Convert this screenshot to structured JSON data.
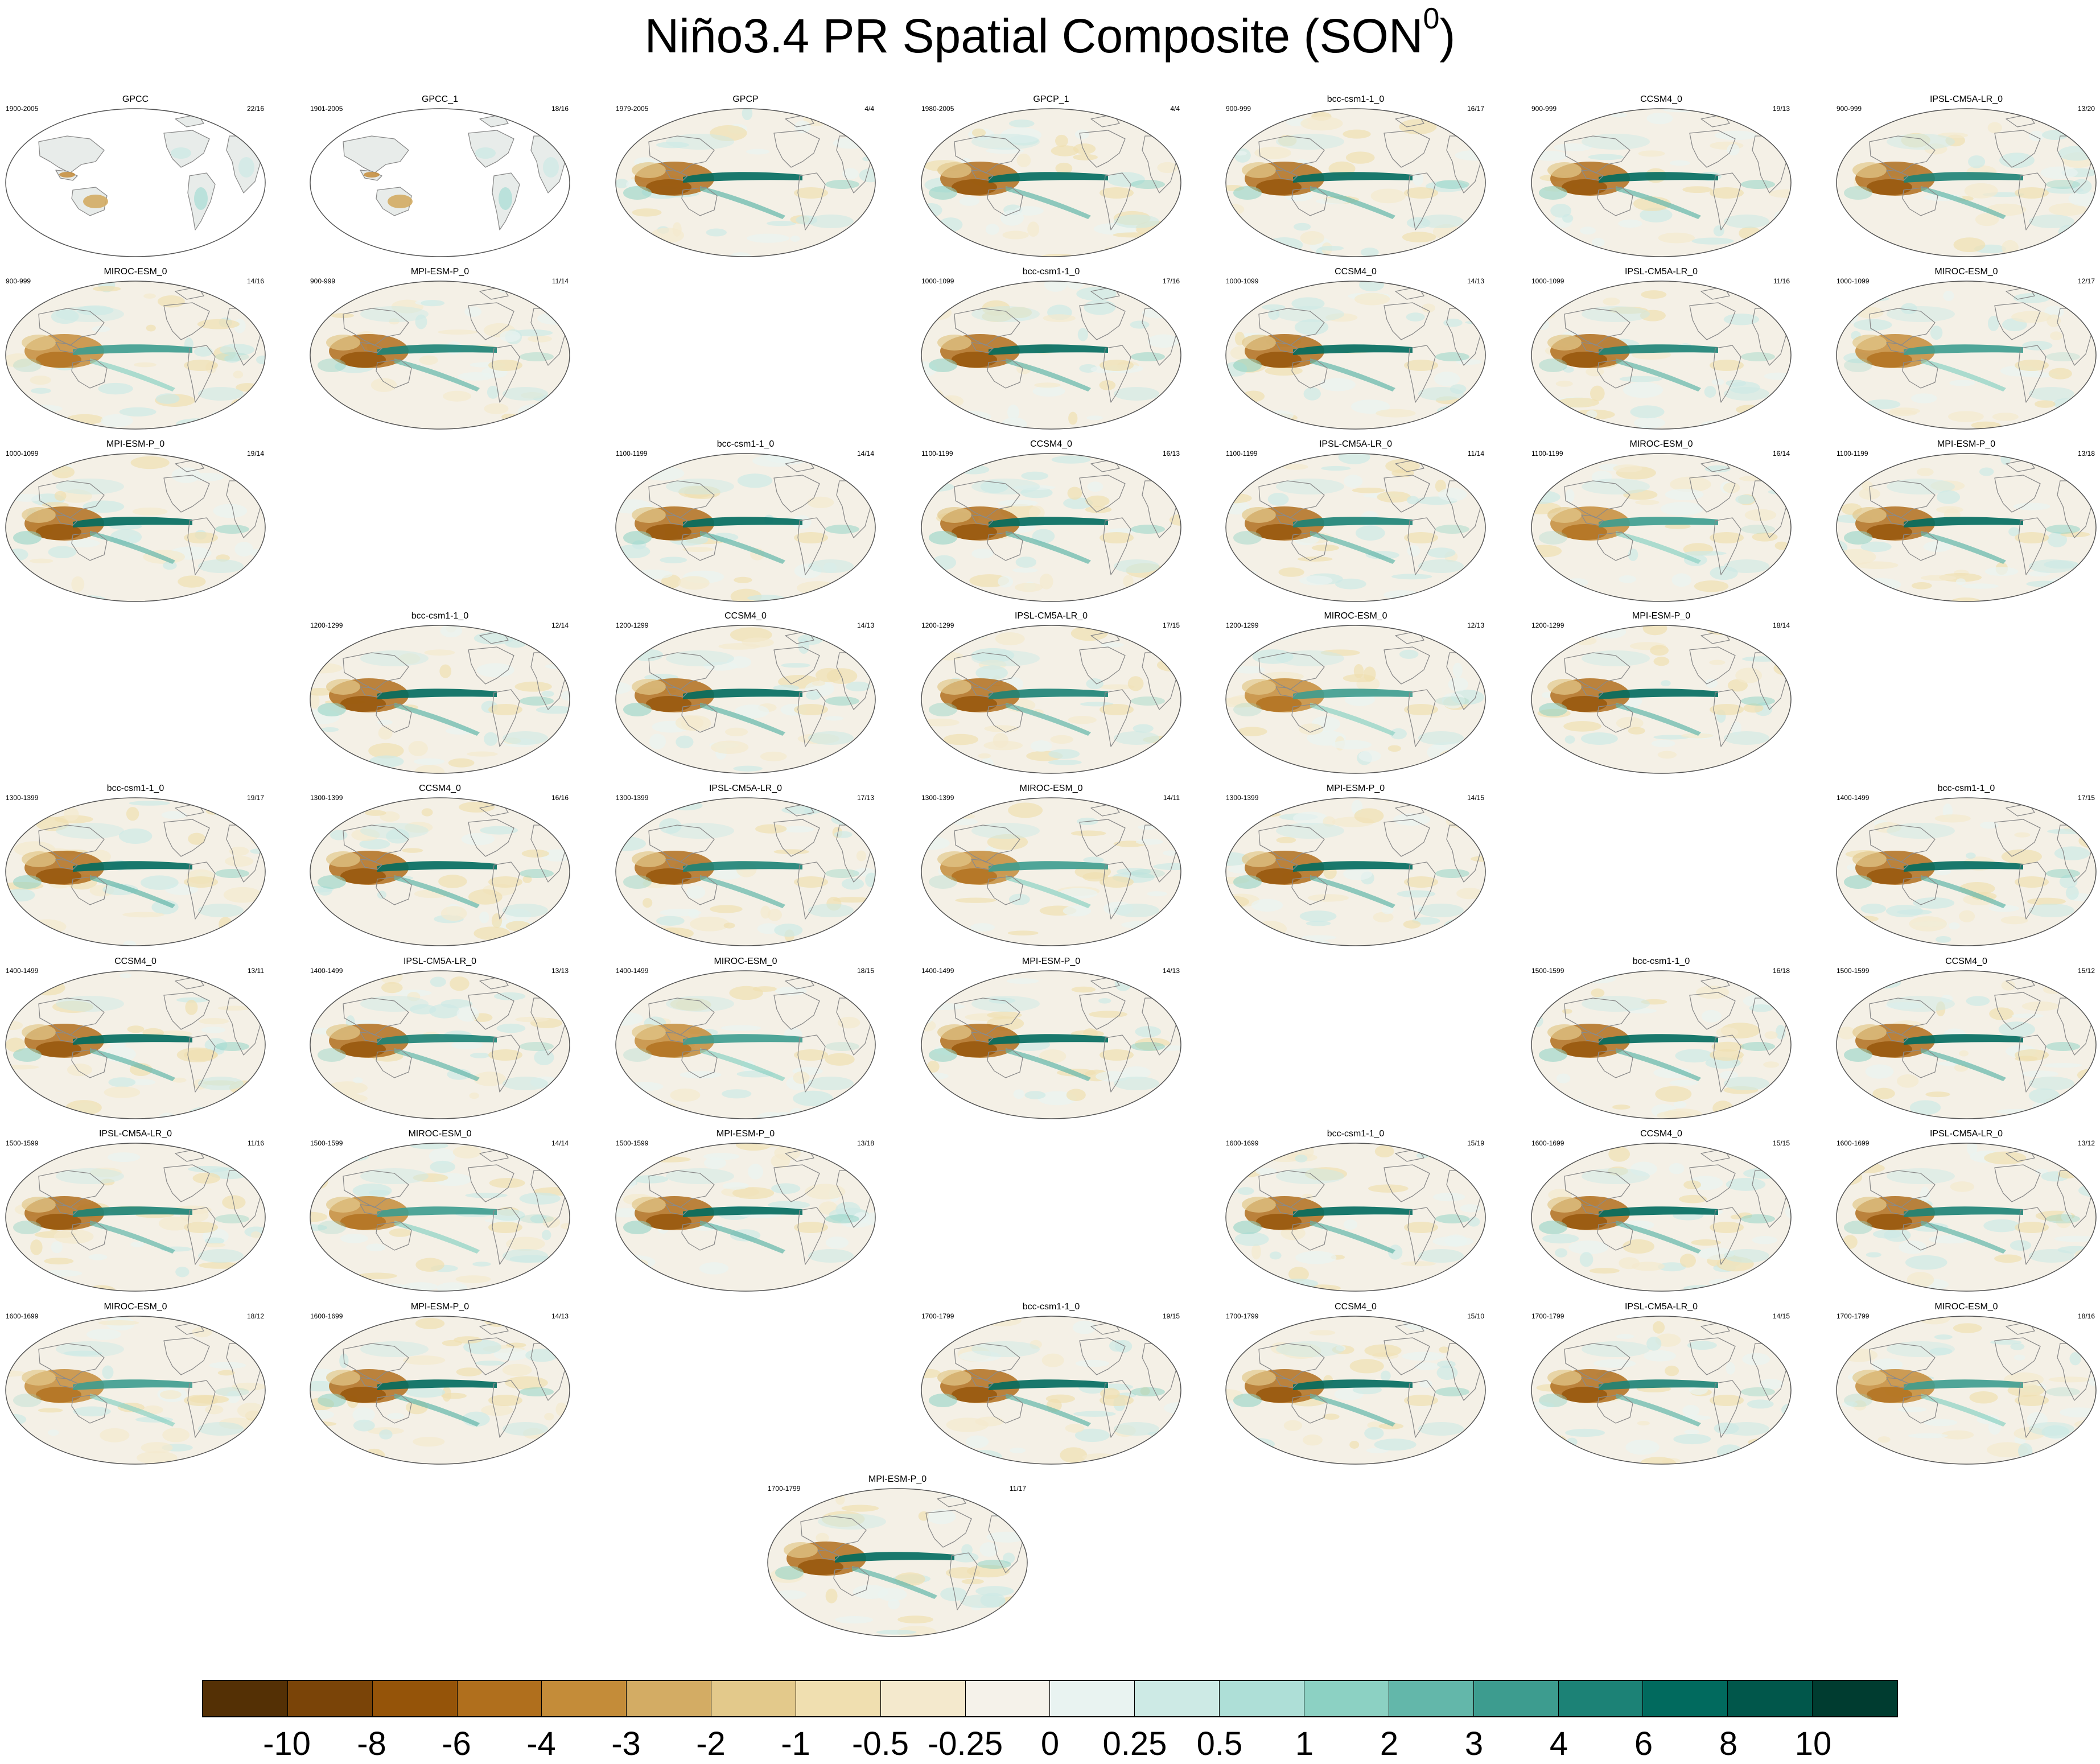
{
  "title": {
    "main": "Niño3.4 PR Spatial Composite (SON",
    "superscript": "0",
    "close": ")"
  },
  "style": {
    "map_background": "#f4f0e6",
    "coast_color": "#8a8a8a",
    "border_color": "#555555"
  },
  "panels": [
    {
      "name": "GPCC",
      "years": "1900-2005",
      "count": "22/16",
      "pattern": "land"
    },
    {
      "name": "GPCC_1",
      "years": "1901-2005",
      "count": "18/16",
      "pattern": "land"
    },
    {
      "name": "GPCP",
      "years": "1979-2005",
      "count": "4/4",
      "pattern": "strong"
    },
    {
      "name": "GPCP_1",
      "years": "1980-2005",
      "count": "4/4",
      "pattern": "strong"
    },
    {
      "name": "bcc-csm1-1_0",
      "years": "900-999",
      "count": "16/17",
      "pattern": "strong"
    },
    {
      "name": "CCSM4_0",
      "years": "900-999",
      "count": "19/13",
      "pattern": "strong"
    },
    {
      "name": "IPSL-CM5A-LR_0",
      "years": "900-999",
      "count": "13/20",
      "pattern": "medium"
    },
    {
      "name": "MIROC-ESM_0",
      "years": "900-999",
      "count": "14/16",
      "pattern": "weak"
    },
    {
      "name": "MPI-ESM-P_0",
      "years": "900-999",
      "count": "11/14",
      "pattern": "medium"
    },
    {
      "name": "bcc-csm1-1_0",
      "years": "1000-1099",
      "count": "17/16",
      "pattern": "strong"
    },
    {
      "name": "CCSM4_0",
      "years": "1000-1099",
      "count": "14/13",
      "pattern": "strong"
    },
    {
      "name": "IPSL-CM5A-LR_0",
      "years": "1000-1099",
      "count": "11/16",
      "pattern": "medium"
    },
    {
      "name": "MIROC-ESM_0",
      "years": "1000-1099",
      "count": "12/17",
      "pattern": "weak"
    },
    {
      "name": "MPI-ESM-P_0",
      "years": "1000-1099",
      "count": "19/14",
      "pattern": "strong"
    },
    {
      "name": "bcc-csm1-1_0",
      "years": "1100-1199",
      "count": "14/14",
      "pattern": "strong"
    },
    {
      "name": "CCSM4_0",
      "years": "1100-1199",
      "count": "16/13",
      "pattern": "strong"
    },
    {
      "name": "IPSL-CM5A-LR_0",
      "years": "1100-1199",
      "count": "11/14",
      "pattern": "medium"
    },
    {
      "name": "MIROC-ESM_0",
      "years": "1100-1199",
      "count": "16/14",
      "pattern": "weak"
    },
    {
      "name": "MPI-ESM-P_0",
      "years": "1100-1199",
      "count": "13/18",
      "pattern": "strong"
    },
    {
      "name": "bcc-csm1-1_0",
      "years": "1200-1299",
      "count": "12/14",
      "pattern": "strong"
    },
    {
      "name": "CCSM4_0",
      "years": "1200-1299",
      "count": "14/13",
      "pattern": "strong"
    },
    {
      "name": "IPSL-CM5A-LR_0",
      "years": "1200-1299",
      "count": "17/15",
      "pattern": "medium"
    },
    {
      "name": "MIROC-ESM_0",
      "years": "1200-1299",
      "count": "12/13",
      "pattern": "weak"
    },
    {
      "name": "MPI-ESM-P_0",
      "years": "1200-1299",
      "count": "18/14",
      "pattern": "strong"
    },
    {
      "name": "bcc-csm1-1_0",
      "years": "1300-1399",
      "count": "19/17",
      "pattern": "strong"
    },
    {
      "name": "CCSM4_0",
      "years": "1300-1399",
      "count": "16/16",
      "pattern": "strong"
    },
    {
      "name": "IPSL-CM5A-LR_0",
      "years": "1300-1399",
      "count": "17/13",
      "pattern": "medium"
    },
    {
      "name": "MIROC-ESM_0",
      "years": "1300-1399",
      "count": "14/11",
      "pattern": "weak"
    },
    {
      "name": "MPI-ESM-P_0",
      "years": "1300-1399",
      "count": "14/15",
      "pattern": "strong"
    },
    {
      "name": "bcc-csm1-1_0",
      "years": "1400-1499",
      "count": "17/15",
      "pattern": "strong"
    },
    {
      "name": "CCSM4_0",
      "years": "1400-1499",
      "count": "13/11",
      "pattern": "strong"
    },
    {
      "name": "IPSL-CM5A-LR_0",
      "years": "1400-1499",
      "count": "13/13",
      "pattern": "medium"
    },
    {
      "name": "MIROC-ESM_0",
      "years": "1400-1499",
      "count": "18/15",
      "pattern": "weak"
    },
    {
      "name": "MPI-ESM-P_0",
      "years": "1400-1499",
      "count": "14/13",
      "pattern": "strong"
    },
    {
      "name": "bcc-csm1-1_0",
      "years": "1500-1599",
      "count": "16/18",
      "pattern": "strong"
    },
    {
      "name": "CCSM4_0",
      "years": "1500-1599",
      "count": "15/12",
      "pattern": "strong"
    },
    {
      "name": "IPSL-CM5A-LR_0",
      "years": "1500-1599",
      "count": "11/16",
      "pattern": "medium"
    },
    {
      "name": "MIROC-ESM_0",
      "years": "1500-1599",
      "count": "14/14",
      "pattern": "weak"
    },
    {
      "name": "MPI-ESM-P_0",
      "years": "1500-1599",
      "count": "13/18",
      "pattern": "strong"
    },
    {
      "name": "bcc-csm1-1_0",
      "years": "1600-1699",
      "count": "15/19",
      "pattern": "strong"
    },
    {
      "name": "CCSM4_0",
      "years": "1600-1699",
      "count": "15/15",
      "pattern": "strong"
    },
    {
      "name": "IPSL-CM5A-LR_0",
      "years": "1600-1699",
      "count": "13/12",
      "pattern": "medium"
    },
    {
      "name": "MIROC-ESM_0",
      "years": "1600-1699",
      "count": "18/12",
      "pattern": "weak"
    },
    {
      "name": "MPI-ESM-P_0",
      "years": "1600-1699",
      "count": "14/13",
      "pattern": "strong"
    },
    {
      "name": "bcc-csm1-1_0",
      "years": "1700-1799",
      "count": "19/15",
      "pattern": "strong"
    },
    {
      "name": "CCSM4_0",
      "years": "1700-1799",
      "count": "15/10",
      "pattern": "strong"
    },
    {
      "name": "IPSL-CM5A-LR_0",
      "years": "1700-1799",
      "count": "14/15",
      "pattern": "medium"
    },
    {
      "name": "MIROC-ESM_0",
      "years": "1700-1799",
      "count": "18/16",
      "pattern": "weak"
    },
    {
      "name": "MPI-ESM-P_0",
      "years": "1700-1799",
      "count": "11/17",
      "pattern": "strong"
    }
  ],
  "colorbar": {
    "colors": [
      "#543005",
      "#7a4408",
      "#955409",
      "#b06f1d",
      "#c48c39",
      "#d3ac64",
      "#e3c98b",
      "#f0dfb0",
      "#f4e9cd",
      "#f5f2ea",
      "#e9f3f1",
      "#cdeae5",
      "#aedfd7",
      "#8cd1c3",
      "#63b7aa",
      "#3d9c8f",
      "#1c8276",
      "#016a5e",
      "#01574b",
      "#003c30"
    ],
    "labels": [
      "-10",
      "-8",
      "-6",
      "-4",
      "-3",
      "-2",
      "-1",
      "-0.5",
      "-0.25",
      "0",
      "0.25",
      "0.5",
      "1",
      "2",
      "3",
      "4",
      "6",
      "8",
      "10"
    ]
  }
}
